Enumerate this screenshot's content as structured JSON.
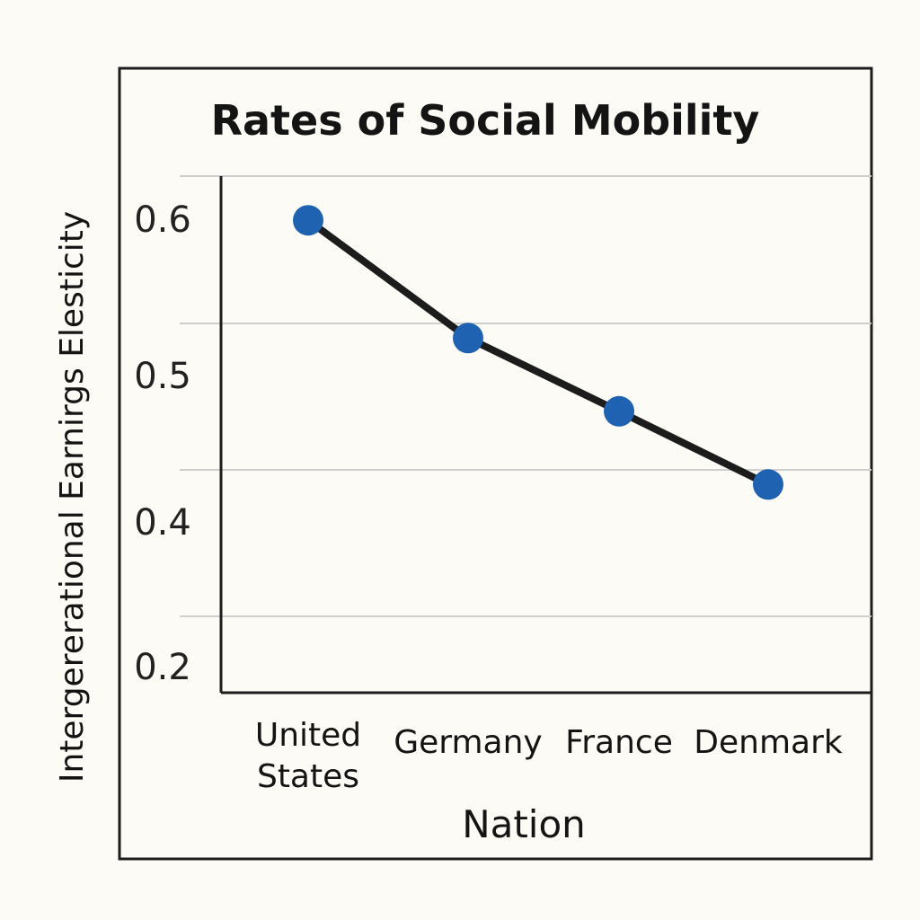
{
  "chart_data": {
    "type": "line",
    "title": "Rates of Social Mobility",
    "xlabel": "Nation",
    "ylabel": "Intergererational Earnirgs Elesticity",
    "categories": [
      "United States",
      "Germany",
      "France",
      "Denmark"
    ],
    "category_label_lines": [
      [
        "United",
        "States"
      ],
      [
        "Germany"
      ],
      [
        "France"
      ],
      [
        "Denmark"
      ]
    ],
    "series": [
      {
        "name": "Intergenerational earnings elasticity",
        "values": [
          0.57,
          0.49,
          0.44,
          0.38
        ]
      }
    ],
    "y_ticks": [
      {
        "value": 0.6,
        "label": "0.6"
      },
      {
        "value": 0.5,
        "label": "0.5"
      },
      {
        "value": 0.4,
        "label": "0.4"
      },
      {
        "value": 0.2,
        "label": "0.2"
      }
    ],
    "grid": true,
    "legend": "none",
    "colors": {
      "background": "#fcfbf6",
      "frame": "#1c1c1c",
      "grid": "#cfcfcf",
      "line": "#1c1c1c",
      "marker": "#1f62b2",
      "text": "#141414"
    }
  }
}
